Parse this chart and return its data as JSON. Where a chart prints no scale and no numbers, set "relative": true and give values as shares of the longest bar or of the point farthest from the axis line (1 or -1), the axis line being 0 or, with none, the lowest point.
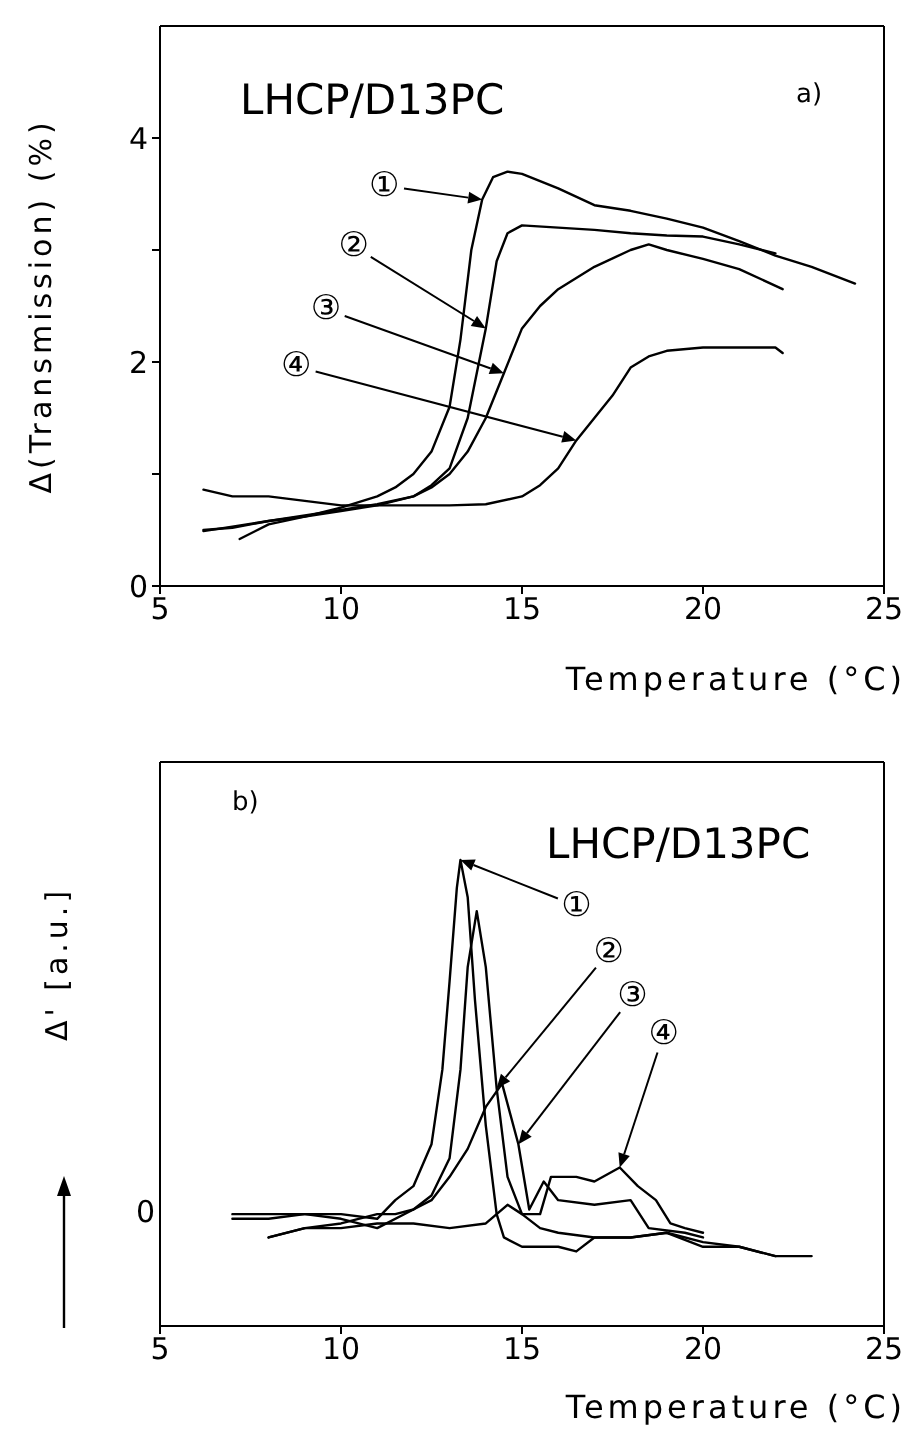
{
  "chart_data": [
    {
      "type": "line",
      "title": "LHCP/D13PC",
      "xlabel": "Temperature (°C)",
      "ylabel": "Δ(Transmission) (%)",
      "xlim": [
        5,
        25
      ],
      "xticks": [
        5,
        10,
        15,
        20,
        25
      ],
      "ylim": [
        0,
        5
      ],
      "yticks": [
        0,
        {
          "value": 1,
          "label": null
        },
        2,
        {
          "value": 3,
          "label": null
        },
        4
      ],
      "grid": false,
      "annotations": [
        "a)",
        {
          "text": "①",
          "x": 13.9,
          "y": 3.45
        },
        {
          "text": "②",
          "x": 14,
          "y": 2.3
        },
        {
          "text": "③",
          "x": 14.5,
          "y": 1.9
        },
        {
          "text": "④",
          "x": 16.5,
          "y": 1.3
        }
      ],
      "series": [
        {
          "color": "#000000",
          "x": [
            7.2,
            8,
            9,
            10,
            11,
            11.5,
            12,
            12.5,
            13,
            13.3,
            13.6,
            13.9,
            14.2,
            14.6,
            15,
            16,
            17,
            18,
            19,
            20,
            21,
            22,
            23,
            24.2
          ],
          "values": [
            0.42,
            0.55,
            0.62,
            0.7,
            0.8,
            0.88,
            1.0,
            1.2,
            1.6,
            2.2,
            3.0,
            3.45,
            3.65,
            3.7,
            3.68,
            3.55,
            3.4,
            3.35,
            3.28,
            3.2,
            3.08,
            2.95,
            2.85,
            2.7
          ]
        },
        {
          "color": "#000000",
          "x": [
            6.2,
            7,
            8,
            9,
            10,
            11,
            12,
            12.5,
            13,
            13.5,
            14,
            14.3,
            14.6,
            15,
            16,
            17,
            18,
            19,
            20,
            21,
            22
          ],
          "values": [
            0.49,
            0.53,
            0.58,
            0.62,
            0.67,
            0.72,
            0.8,
            0.9,
            1.05,
            1.5,
            2.3,
            2.9,
            3.15,
            3.22,
            3.2,
            3.18,
            3.15,
            3.13,
            3.12,
            3.05,
            2.97
          ]
        },
        {
          "color": "#000000",
          "x": [
            6.2,
            7,
            8,
            9,
            10,
            11,
            12,
            12.5,
            13,
            13.5,
            14,
            14.5,
            15,
            15.5,
            16,
            17,
            18,
            18.5,
            19,
            20,
            21,
            22.2
          ],
          "values": [
            0.5,
            0.52,
            0.58,
            0.63,
            0.68,
            0.73,
            0.8,
            0.88,
            1.0,
            1.2,
            1.5,
            1.9,
            2.3,
            2.5,
            2.65,
            2.85,
            3.0,
            3.05,
            3.0,
            2.92,
            2.83,
            2.65
          ]
        },
        {
          "color": "#000000",
          "x": [
            6.2,
            7,
            8,
            9,
            10,
            11,
            12,
            13,
            14,
            15,
            15.5,
            16,
            16.5,
            17,
            17.5,
            18,
            18.5,
            19,
            20,
            21,
            22,
            22.2
          ],
          "values": [
            0.86,
            0.8,
            0.8,
            0.76,
            0.72,
            0.72,
            0.72,
            0.72,
            0.73,
            0.8,
            0.9,
            1.05,
            1.3,
            1.5,
            1.7,
            1.95,
            2.05,
            2.1,
            2.13,
            2.13,
            2.13,
            2.08
          ]
        }
      ]
    },
    {
      "type": "line",
      "title": "LHCP/D13PC",
      "xlabel": "Temperature (°C)",
      "ylabel": "Δ' [a.u.]",
      "relative": true,
      "xlim": [
        5,
        25
      ],
      "xticks": [
        5,
        10,
        15,
        20,
        25
      ],
      "grid": false,
      "annotations": [
        "b)",
        {
          "text": "①",
          "x": 13.3,
          "y": 1
        },
        {
          "text": "②",
          "x": 14.3,
          "y": 0.51
        },
        {
          "text": "③",
          "x": 14.9,
          "y": 0.39
        },
        {
          "text": "④",
          "x": 17.7,
          "y": 0.34
        },
        "0"
      ],
      "series": [
        {
          "color": "#000000",
          "x": [
            7,
            8,
            9,
            10,
            11,
            11.5,
            12,
            12.5,
            12.8,
            13,
            13.2,
            13.3,
            13.5,
            13.7,
            14,
            14.3,
            14.5,
            15,
            16,
            16.5,
            17,
            18,
            19,
            20,
            21,
            22
          ],
          "values": [
            0.23,
            0.23,
            0.24,
            0.24,
            0.23,
            0.27,
            0.3,
            0.39,
            0.55,
            0.74,
            0.94,
            1,
            0.92,
            0.7,
            0.43,
            0.24,
            0.19,
            0.17,
            0.17,
            0.16,
            0.19,
            0.19,
            0.2,
            0.18,
            0.17,
            0.15
          ]
        },
        {
          "color": "#000000",
          "x": [
            8,
            9,
            10,
            11,
            11.5,
            12,
            12.5,
            13,
            13.3,
            13.5,
            13.75,
            14,
            14.3,
            14.6,
            15,
            15.5,
            16,
            17,
            18,
            19,
            20,
            21,
            22,
            23
          ],
          "values": [
            0.19,
            0.21,
            0.22,
            0.24,
            0.24,
            0.25,
            0.28,
            0.36,
            0.55,
            0.77,
            0.89,
            0.77,
            0.51,
            0.32,
            0.24,
            0.21,
            0.2,
            0.19,
            0.19,
            0.2,
            0.17,
            0.17,
            0.15,
            0.15
          ]
        },
        {
          "color": "#000000",
          "x": [
            7,
            8,
            9,
            10,
            11,
            12,
            12.5,
            13,
            13.5,
            14,
            14.45,
            14.9,
            15.2,
            15.6,
            16,
            17,
            18,
            18.5,
            19.5,
            20
          ],
          "values": [
            0.24,
            0.24,
            0.24,
            0.23,
            0.21,
            0.25,
            0.27,
            0.32,
            0.38,
            0.47,
            0.52,
            0.39,
            0.25,
            0.31,
            0.27,
            0.26,
            0.27,
            0.21,
            0.2,
            0.19
          ]
        },
        {
          "color": "#000000",
          "x": [
            8,
            9,
            10,
            11,
            12,
            13,
            14,
            14.3,
            14.6,
            15,
            15.5,
            15.8,
            16.5,
            17,
            17.7,
            18.2,
            18.7,
            19.1,
            19.5,
            20
          ],
          "values": [
            0.19,
            0.21,
            0.21,
            0.22,
            0.22,
            0.21,
            0.22,
            0.24,
            0.26,
            0.24,
            0.24,
            0.32,
            0.32,
            0.31,
            0.34,
            0.3,
            0.27,
            0.22,
            0.21,
            0.2
          ]
        }
      ]
    }
  ]
}
